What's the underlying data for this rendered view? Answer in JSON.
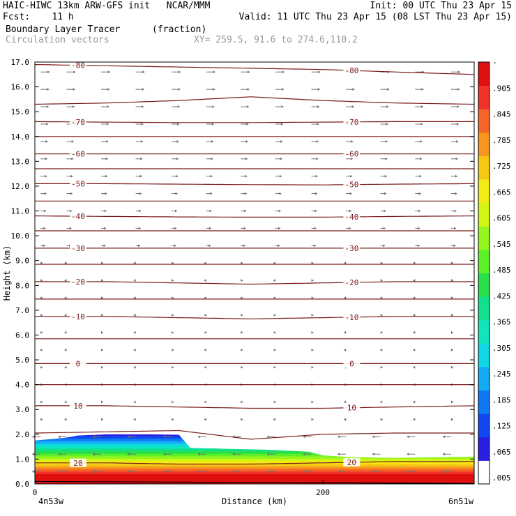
{
  "header": {
    "line1_left": "HAIC-HIWC 13km ARW-GFS init   NCAR/MMM",
    "line1_right": "Init: 00 UTC Thu 23 Apr 15",
    "line2_left": "Fcst:    11 h",
    "line2_right": "Valid: 11 UTC Thu 23 Apr 15 (08 LST Thu 23 Apr 15)",
    "line3_left": "Boundary Layer Tracer",
    "line3_units": "(fraction)",
    "line4_left": "Circulation vectors",
    "line4_xy": "XY= 259.5, 91.6 to 274.6,110.2"
  },
  "colors": {
    "contour": "#7a1a1a",
    "vector": "#707070",
    "text": "#000000",
    "subtext": "#999999"
  },
  "chart_data": {
    "type": "heatmap",
    "xlabel": "Distance (km)",
    "ylabel": "Height (km)",
    "x_left_label": "4n53w",
    "x_right_label": "6n51w",
    "xlim": [
      0,
      305
    ],
    "ylim": [
      0,
      17
    ],
    "x_ticks": [
      0,
      200
    ],
    "y_ticks": [
      "0.0",
      "1.0",
      "2.0",
      "3.0",
      "4.0",
      "5.0",
      "6.0",
      "7.0",
      "8.0",
      "9.0",
      "10.0",
      "11.0",
      "12.0",
      "13.0",
      "14.0",
      "15.0",
      "16.0",
      "17.0"
    ],
    "colorbar": {
      "labels": [
        ".005",
        ".065",
        ".125",
        ".185",
        ".245",
        ".305",
        ".365",
        ".425",
        ".485",
        ".545",
        ".605",
        ".665",
        ".725",
        ".785",
        ".845",
        ".905",
        "-"
      ],
      "colors": [
        "#ffffff",
        "#2a1fe0",
        "#1246f0",
        "#0f78f5",
        "#14aaf5",
        "#10d7e6",
        "#10e6bc",
        "#12e08a",
        "#28e04a",
        "#5cf028",
        "#96f51e",
        "#d2f514",
        "#f5eb14",
        "#f5c814",
        "#f5961e",
        "#f56428",
        "#f03228",
        "#e01010"
      ]
    },
    "tracer_top_km": {
      "x": [
        0,
        20,
        30,
        50,
        80,
        100,
        108,
        130,
        160,
        190,
        200,
        220,
        250,
        280,
        305
      ],
      "y": [
        1.75,
        1.85,
        1.95,
        2.0,
        2.0,
        1.98,
        1.45,
        1.42,
        1.38,
        1.3,
        1.15,
        1.08,
        1.05,
        1.08,
        1.1
      ]
    },
    "temperature_contours": [
      {
        "label": "-80",
        "y": [
          16.9,
          16.85,
          16.8,
          16.75,
          16.7,
          16.6,
          16.5
        ]
      },
      {
        "label": "",
        "y": [
          15.3,
          15.35,
          15.45,
          15.6,
          15.45,
          15.35,
          15.3
        ]
      },
      {
        "label": "-70",
        "y": [
          14.6,
          14.58,
          14.56,
          14.56,
          14.58,
          14.6,
          14.6
        ]
      },
      {
        "label": "",
        "y": [
          14.0,
          14.0,
          14.0,
          14.0,
          14.0,
          14.0,
          14.0
        ]
      },
      {
        "label": "-60",
        "y": [
          13.3,
          13.3,
          13.3,
          13.3,
          13.3,
          13.3,
          13.3
        ]
      },
      {
        "label": "",
        "y": [
          12.7,
          12.7,
          12.7,
          12.7,
          12.7,
          12.7,
          12.7
        ]
      },
      {
        "label": "-50",
        "y": [
          12.1,
          12.1,
          12.08,
          12.06,
          12.05,
          12.08,
          12.1
        ]
      },
      {
        "label": "",
        "y": [
          11.4,
          11.4,
          11.4,
          11.4,
          11.4,
          11.4,
          11.4
        ]
      },
      {
        "label": "-40",
        "y": [
          10.8,
          10.78,
          10.76,
          10.75,
          10.75,
          10.78,
          10.8
        ]
      },
      {
        "label": "",
        "y": [
          10.2,
          10.2,
          10.2,
          10.2,
          10.2,
          10.2,
          10.2
        ]
      },
      {
        "label": "-30",
        "y": [
          9.5,
          9.5,
          9.5,
          9.5,
          9.5,
          9.5,
          9.5
        ]
      },
      {
        "label": "",
        "y": [
          8.85,
          8.85,
          8.85,
          8.85,
          8.85,
          8.85,
          8.85
        ]
      },
      {
        "label": "-20",
        "y": [
          8.15,
          8.15,
          8.1,
          8.05,
          8.1,
          8.15,
          8.15
        ]
      },
      {
        "label": "",
        "y": [
          7.45,
          7.45,
          7.45,
          7.45,
          7.45,
          7.45,
          7.45
        ]
      },
      {
        "label": "-10",
        "y": [
          6.75,
          6.75,
          6.7,
          6.65,
          6.7,
          6.75,
          6.75
        ]
      },
      {
        "label": "",
        "y": [
          5.85,
          5.85,
          5.85,
          5.85,
          5.85,
          5.85,
          5.85
        ]
      },
      {
        "label": "0",
        "y": [
          4.85,
          4.85,
          4.85,
          4.85,
          4.85,
          4.85,
          4.85
        ]
      },
      {
        "label": "",
        "y": [
          4.0,
          4.0,
          4.0,
          4.0,
          4.0,
          4.0,
          4.0
        ]
      },
      {
        "label": "10",
        "y": [
          3.15,
          3.15,
          3.1,
          3.05,
          3.05,
          3.1,
          3.15
        ]
      },
      {
        "label": "",
        "y": [
          2.05,
          2.1,
          2.15,
          1.8,
          2.0,
          2.05,
          2.05
        ]
      },
      {
        "label": "20",
        "y": [
          0.85,
          0.85,
          0.8,
          0.8,
          0.85,
          0.9,
          0.9
        ]
      }
    ],
    "contour_x": [
      0,
      50,
      100,
      150,
      200,
      250,
      305
    ]
  }
}
